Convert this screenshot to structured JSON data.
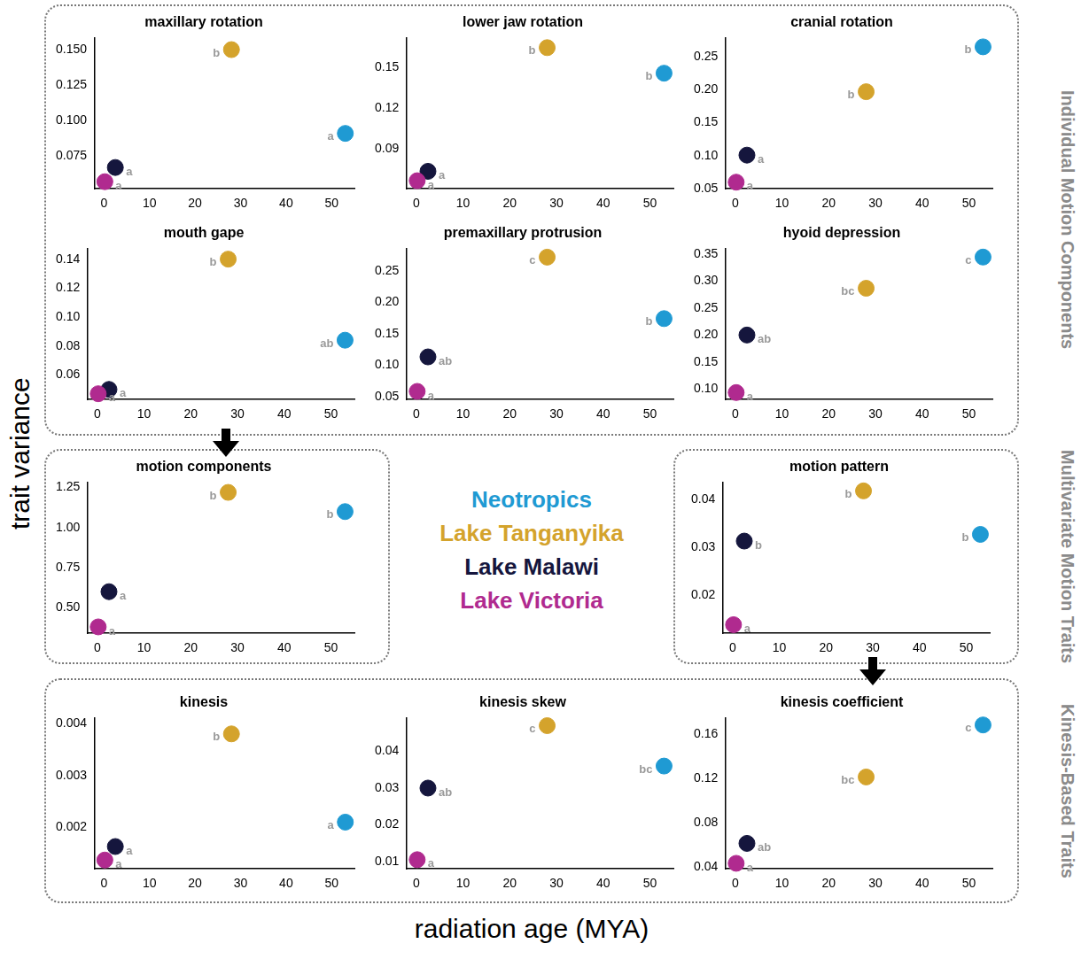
{
  "figure": {
    "y_label": "trait variance",
    "x_label": "radiation age (MYA)",
    "groups": [
      "Individual Motion Components",
      "Multivariate Motion Traits",
      "Kinesis-Based Traits"
    ],
    "legend": [
      {
        "name": "Neotropics",
        "color": "#1f9ad3"
      },
      {
        "name": "Lake Tanganyika",
        "color": "#d4a32c"
      },
      {
        "name": "Lake Malawi",
        "color": "#15163d"
      },
      {
        "name": "Lake Victoria",
        "color": "#b02a8f"
      }
    ]
  },
  "chart_data": [
    {
      "type": "scatter",
      "title": "maxillary rotation",
      "marker": "circle",
      "xlim": [
        -2,
        55
      ],
      "xticks": [
        0,
        10,
        20,
        30,
        40,
        50
      ],
      "ylim": [
        0.052,
        0.158
      ],
      "yticks": [
        0.075,
        {
          "value": 0.1,
          "label": "0.100"
        },
        0.125,
        {
          "value": 0.15,
          "label": "0.150"
        }
      ],
      "series": [
        {
          "name": "Lake Victoria",
          "color": "#b02a8f",
          "x": [
            0.2
          ],
          "values": [
            0.057
          ],
          "annotations": [
            "a"
          ]
        },
        {
          "name": "Lake Malawi",
          "color": "#15163d",
          "x": [
            2.5
          ],
          "values": [
            0.067
          ],
          "annotations": [
            "a"
          ]
        },
        {
          "name": "Lake Tanganyika",
          "color": "#d4a32c",
          "x": [
            28
          ],
          "values": [
            0.15
          ],
          "annotations": [
            "b"
          ]
        },
        {
          "name": "Neotropics",
          "color": "#1f9ad3",
          "x": [
            53
          ],
          "values": [
            0.091
          ],
          "annotations": [
            "a"
          ]
        }
      ]
    },
    {
      "type": "scatter",
      "title": "lower jaw rotation",
      "marker": "circle",
      "xlim": [
        -2,
        55
      ],
      "xticks": [
        0,
        10,
        20,
        30,
        40,
        50
      ],
      "ylim": [
        0.06,
        0.172
      ],
      "yticks": [
        0.09,
        0.12,
        0.15
      ],
      "series": [
        {
          "name": "Lake Victoria",
          "color": "#b02a8f",
          "x": [
            0.2
          ],
          "values": [
            0.066
          ],
          "annotations": [
            "a"
          ]
        },
        {
          "name": "Lake Malawi",
          "color": "#15163d",
          "x": [
            2.5
          ],
          "values": [
            0.073
          ],
          "annotations": [
            "a"
          ]
        },
        {
          "name": "Lake Tanganyika",
          "color": "#d4a32c",
          "x": [
            28
          ],
          "values": [
            0.165
          ],
          "annotations": [
            "b"
          ]
        },
        {
          "name": "Neotropics",
          "color": "#1f9ad3",
          "x": [
            53
          ],
          "values": [
            0.146
          ],
          "annotations": [
            "b"
          ]
        }
      ]
    },
    {
      "type": "scatter",
      "title": "cranial rotation",
      "marker": "circle",
      "xlim": [
        -2,
        55
      ],
      "xticks": [
        0,
        10,
        20,
        30,
        40,
        50
      ],
      "ylim": [
        0.05,
        0.278
      ],
      "yticks": [
        0.05,
        {
          "value": 0.1,
          "label": "0.10"
        },
        0.15,
        {
          "value": 0.2,
          "label": "0.20"
        },
        0.25
      ],
      "series": [
        {
          "name": "Lake Victoria",
          "color": "#b02a8f",
          "x": [
            0.2
          ],
          "values": [
            0.06
          ],
          "annotations": [
            "a"
          ]
        },
        {
          "name": "Lake Malawi",
          "color": "#15163d",
          "x": [
            2.5
          ],
          "values": [
            0.101
          ],
          "annotations": [
            "a"
          ]
        },
        {
          "name": "Lake Tanganyika",
          "color": "#d4a32c",
          "x": [
            28
          ],
          "values": [
            0.197
          ],
          "annotations": [
            "b"
          ]
        },
        {
          "name": "Neotropics",
          "color": "#1f9ad3",
          "x": [
            53
          ],
          "values": [
            0.265
          ],
          "annotations": [
            "b"
          ]
        }
      ]
    },
    {
      "type": "scatter",
      "title": "mouth gape",
      "marker": "circle",
      "xlim": [
        -2,
        55
      ],
      "xticks": [
        0,
        10,
        20,
        30,
        40,
        50
      ],
      "ylim": [
        0.043,
        0.147
      ],
      "yticks": [
        0.06,
        0.08,
        {
          "value": 0.1,
          "label": "0.10"
        },
        0.12,
        0.14
      ],
      "series": [
        {
          "name": "Lake Victoria",
          "color": "#b02a8f",
          "x": [
            0.2
          ],
          "values": [
            0.047
          ],
          "annotations": [
            "a"
          ]
        },
        {
          "name": "Lake Malawi",
          "color": "#15163d",
          "x": [
            2.5
          ],
          "values": [
            0.05
          ],
          "annotations": [
            "a"
          ]
        },
        {
          "name": "Lake Tanganyika",
          "color": "#d4a32c",
          "x": [
            28
          ],
          "values": [
            0.14
          ],
          "annotations": [
            "b"
          ]
        },
        {
          "name": "Neotropics",
          "color": "#1f9ad3",
          "x": [
            53
          ],
          "values": [
            0.084
          ],
          "annotations": [
            "ab"
          ]
        }
      ]
    },
    {
      "type": "scatter",
      "title": "premaxillary protrusion",
      "marker": "circle",
      "xlim": [
        -2,
        55
      ],
      "xticks": [
        0,
        10,
        20,
        30,
        40,
        50
      ],
      "ylim": [
        0.045,
        0.285
      ],
      "yticks": [
        0.05,
        {
          "value": 0.1,
          "label": "0.10"
        },
        0.15,
        {
          "value": 0.2,
          "label": "0.20"
        },
        0.25
      ],
      "series": [
        {
          "name": "Lake Victoria",
          "color": "#b02a8f",
          "x": [
            0.2
          ],
          "values": [
            0.058
          ],
          "annotations": [
            "a"
          ]
        },
        {
          "name": "Lake Malawi",
          "color": "#15163d",
          "x": [
            2.5
          ],
          "values": [
            0.113
          ],
          "annotations": [
            "ab"
          ]
        },
        {
          "name": "Lake Tanganyika",
          "color": "#d4a32c",
          "x": [
            28
          ],
          "values": [
            0.272
          ],
          "annotations": [
            "c"
          ]
        },
        {
          "name": "Neotropics",
          "color": "#1f9ad3",
          "x": [
            53
          ],
          "values": [
            0.174
          ],
          "annotations": [
            "b"
          ]
        }
      ]
    },
    {
      "type": "scatter",
      "title": "hyoid depression",
      "marker": "circle",
      "xlim": [
        -2,
        55
      ],
      "xticks": [
        0,
        10,
        20,
        30,
        40,
        50
      ],
      "ylim": [
        0.08,
        0.36
      ],
      "yticks": [
        {
          "value": 0.1,
          "label": "0.10"
        },
        0.15,
        {
          "value": 0.2,
          "label": "0.20"
        },
        0.25,
        {
          "value": 0.3,
          "label": "0.30"
        },
        0.35
      ],
      "series": [
        {
          "name": "Lake Victoria",
          "color": "#b02a8f",
          "x": [
            0.2
          ],
          "values": [
            0.093
          ],
          "annotations": [
            "a"
          ]
        },
        {
          "name": "Lake Malawi",
          "color": "#15163d",
          "x": [
            2.5
          ],
          "values": [
            0.2
          ],
          "annotations": [
            "ab"
          ]
        },
        {
          "name": "Lake Tanganyika",
          "color": "#d4a32c",
          "x": [
            28
          ],
          "values": [
            0.287
          ],
          "annotations": [
            "bc"
          ]
        },
        {
          "name": "Neotropics",
          "color": "#1f9ad3",
          "x": [
            53
          ],
          "values": [
            0.345
          ],
          "annotations": [
            "c"
          ]
        }
      ]
    },
    {
      "type": "scatter",
      "title": "motion components",
      "marker": "circle",
      "xlim": [
        -2,
        55
      ],
      "xticks": [
        0,
        10,
        20,
        30,
        40,
        50
      ],
      "ylim": [
        0.34,
        1.28
      ],
      "yticks": [
        {
          "value": 0.5,
          "label": "0.50"
        },
        0.75,
        {
          "value": 1,
          "label": "1.00"
        },
        1.25
      ],
      "series": [
        {
          "name": "Lake Victoria",
          "color": "#b02a8f",
          "x": [
            0.2
          ],
          "values": [
            0.38
          ],
          "annotations": [
            "a"
          ]
        },
        {
          "name": "Lake Malawi",
          "color": "#15163d",
          "x": [
            2.5
          ],
          "values": [
            0.6
          ],
          "annotations": [
            "a"
          ]
        },
        {
          "name": "Lake Tanganyika",
          "color": "#d4a32c",
          "x": [
            28
          ],
          "values": [
            1.22
          ],
          "annotations": [
            "b"
          ]
        },
        {
          "name": "Neotropics",
          "color": "#1f9ad3",
          "x": [
            53
          ],
          "values": [
            1.1
          ],
          "annotations": [
            "b"
          ]
        }
      ]
    },
    {
      "type": "scatter",
      "title": "motion pattern",
      "marker": "circle",
      "xlim": [
        -2,
        55
      ],
      "xticks": [
        0,
        10,
        20,
        30,
        40,
        50
      ],
      "ylim": [
        0.012,
        0.0435
      ],
      "yticks": [
        0.02,
        0.03,
        0.04
      ],
      "series": [
        {
          "name": "Lake Victoria",
          "color": "#b02a8f",
          "x": [
            0.2
          ],
          "values": [
            0.0138
          ],
          "annotations": [
            "a"
          ]
        },
        {
          "name": "Lake Malawi",
          "color": "#15163d",
          "x": [
            2.5
          ],
          "values": [
            0.0313
          ],
          "annotations": [
            "b"
          ]
        },
        {
          "name": "Lake Tanganyika",
          "color": "#d4a32c",
          "x": [
            28
          ],
          "values": [
            0.0418
          ],
          "annotations": [
            "b"
          ]
        },
        {
          "name": "Neotropics",
          "color": "#1f9ad3",
          "x": [
            53
          ],
          "values": [
            0.0327
          ],
          "annotations": [
            "b"
          ]
        }
      ]
    },
    {
      "type": "scatter",
      "title": "kinesis",
      "marker": "circle",
      "xlim": [
        -2,
        55
      ],
      "xticks": [
        0,
        10,
        20,
        30,
        40,
        50
      ],
      "ylim": [
        0.0012,
        0.0041
      ],
      "yticks": [
        0.002,
        0.003,
        0.004
      ],
      "series": [
        {
          "name": "Lake Victoria",
          "color": "#b02a8f",
          "x": [
            0.2
          ],
          "values": [
            0.00137
          ],
          "annotations": [
            "a"
          ]
        },
        {
          "name": "Lake Malawi",
          "color": "#15163d",
          "x": [
            2.5
          ],
          "values": [
            0.00163
          ],
          "annotations": [
            "a"
          ]
        },
        {
          "name": "Lake Tanganyika",
          "color": "#d4a32c",
          "x": [
            28
          ],
          "values": [
            0.0038
          ],
          "annotations": [
            "b"
          ]
        },
        {
          "name": "Neotropics",
          "color": "#1f9ad3",
          "x": [
            53
          ],
          "values": [
            0.0021
          ],
          "annotations": [
            "a"
          ]
        }
      ]
    },
    {
      "type": "scatter",
      "title": "kinesis skew",
      "marker": "circle",
      "xlim": [
        -2,
        55
      ],
      "xticks": [
        0,
        10,
        20,
        30,
        40,
        50
      ],
      "ylim": [
        0.008,
        0.049
      ],
      "yticks": [
        0.01,
        0.02,
        0.03,
        0.04
      ],
      "series": [
        {
          "name": "Lake Victoria",
          "color": "#b02a8f",
          "x": [
            0.2
          ],
          "values": [
            0.0105
          ],
          "annotations": [
            "a"
          ]
        },
        {
          "name": "Lake Malawi",
          "color": "#15163d",
          "x": [
            2.5
          ],
          "values": [
            0.03
          ],
          "annotations": [
            "ab"
          ]
        },
        {
          "name": "Lake Tanganyika",
          "color": "#d4a32c",
          "x": [
            28
          ],
          "values": [
            0.047
          ],
          "annotations": [
            "c"
          ]
        },
        {
          "name": "Neotropics",
          "color": "#1f9ad3",
          "x": [
            53
          ],
          "values": [
            0.036
          ],
          "annotations": [
            "bc"
          ]
        }
      ]
    },
    {
      "type": "scatter",
      "title": "kinesis coefficient",
      "marker": "circle",
      "xlim": [
        -2,
        55
      ],
      "xticks": [
        0,
        10,
        20,
        30,
        40,
        50
      ],
      "ylim": [
        0.038,
        0.174
      ],
      "yticks": [
        0.04,
        0.08,
        0.12,
        0.16
      ],
      "series": [
        {
          "name": "Lake Victoria",
          "color": "#b02a8f",
          "x": [
            0.2
          ],
          "values": [
            0.043
          ],
          "annotations": [
            "a"
          ]
        },
        {
          "name": "Lake Malawi",
          "color": "#15163d",
          "x": [
            2.5
          ],
          "values": [
            0.061
          ],
          "annotations": [
            "ab"
          ]
        },
        {
          "name": "Lake Tanganyika",
          "color": "#d4a32c",
          "x": [
            28
          ],
          "values": [
            0.121
          ],
          "annotations": [
            "bc"
          ]
        },
        {
          "name": "Neotropics",
          "color": "#1f9ad3",
          "x": [
            53
          ],
          "values": [
            0.168
          ],
          "annotations": [
            "c"
          ]
        }
      ]
    }
  ]
}
